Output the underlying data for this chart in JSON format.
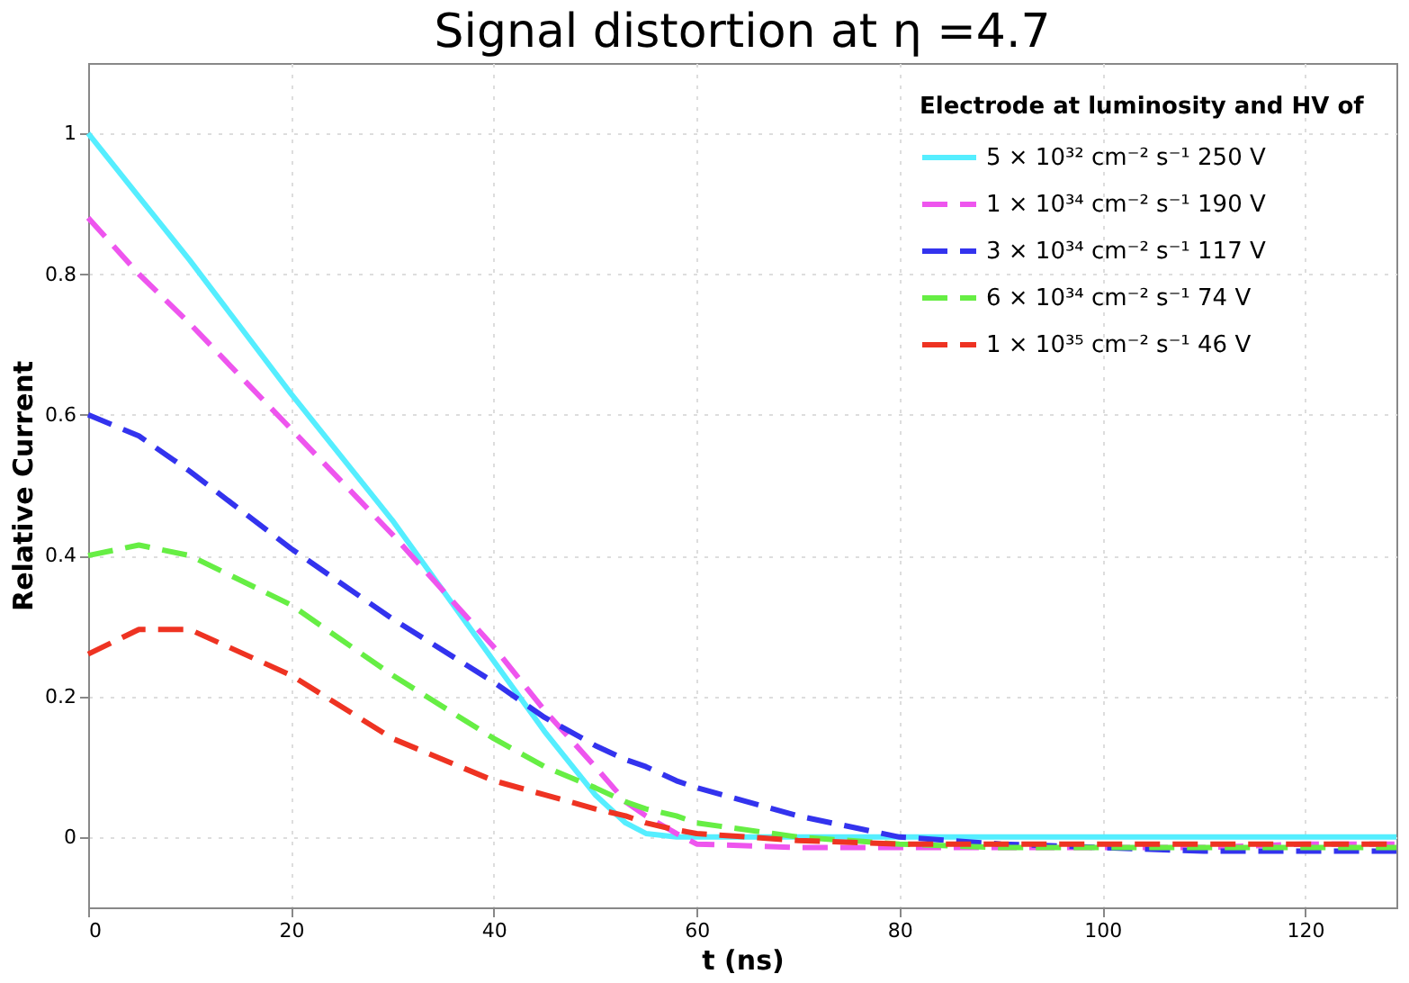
{
  "chart_data": {
    "type": "line",
    "title": "Signal distortion at η =4.7",
    "xlabel": "t (ns)",
    "ylabel": "Relative Current",
    "legend_title": "Electrode at luminosity and HV of",
    "legend": "top right",
    "grid": true,
    "xlim": [
      0,
      129
    ],
    "xticks": [
      0,
      20,
      40,
      60,
      80,
      100,
      120
    ],
    "ylim": [
      -0.1,
      1.1
    ],
    "yticks": [
      0,
      0.2,
      0.4,
      0.6,
      0.8,
      1
    ],
    "x": [
      0,
      5,
      10,
      20,
      30,
      40,
      45,
      50,
      53,
      55,
      58,
      60,
      70,
      80,
      90,
      100,
      110,
      120,
      129
    ],
    "series": [
      {
        "name": "5 × 10³² cm⁻² s⁻¹      250 V",
        "color": "#55eeff",
        "line_style": "solid",
        "values": [
          1,
          0.91,
          0.82,
          0.63,
          0.45,
          0.25,
          0.15,
          0.06,
          0.02,
          0.005,
          0,
          0,
          0,
          0,
          0,
          0,
          0,
          0,
          0
        ]
      },
      {
        "name": "1 × 10³⁴ cm⁻² s⁻¹      190 V",
        "color": "#ee55ee",
        "line_style": "dashed",
        "values": [
          0.88,
          0.8,
          0.73,
          0.58,
          0.43,
          0.27,
          0.18,
          0.1,
          0.05,
          0.03,
          0.005,
          -0.01,
          -0.015,
          -0.015,
          -0.015,
          -0.015,
          -0.015,
          -0.01,
          -0.01
        ]
      },
      {
        "name": "3 × 10³⁴ cm⁻² s⁻¹      117 V",
        "color": "#3333ee",
        "line_style": "dashed",
        "values": [
          0.6,
          0.57,
          0.52,
          0.41,
          0.31,
          0.22,
          0.17,
          0.13,
          0.11,
          0.1,
          0.08,
          0.07,
          0.03,
          0,
          -0.01,
          -0.015,
          -0.02,
          -0.02,
          -0.02
        ]
      },
      {
        "name": "6 × 10³⁴ cm⁻² s⁻¹        74 V",
        "color": "#66ee44",
        "line_style": "dashed",
        "values": [
          0.4,
          0.415,
          0.4,
          0.33,
          0.23,
          0.14,
          0.1,
          0.07,
          0.05,
          0.04,
          0.03,
          0.02,
          0,
          -0.01,
          -0.015,
          -0.015,
          -0.015,
          -0.015,
          -0.015
        ]
      },
      {
        "name": "1 × 10³⁵ cm⁻² s⁻¹        46 V",
        "color": "#ee3322",
        "line_style": "dashed",
        "values": [
          0.26,
          0.295,
          0.295,
          0.23,
          0.14,
          0.08,
          0.06,
          0.04,
          0.03,
          0.02,
          0.01,
          0.005,
          -0.005,
          -0.01,
          -0.01,
          -0.01,
          -0.01,
          -0.01,
          -0.01
        ]
      }
    ]
  }
}
